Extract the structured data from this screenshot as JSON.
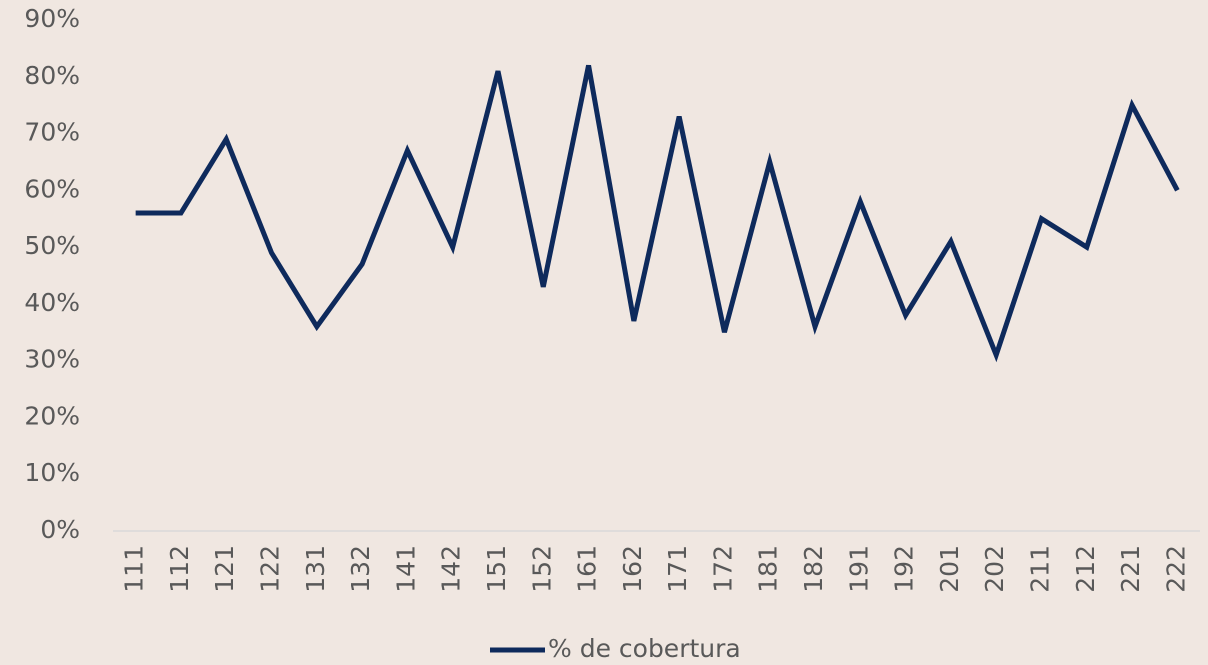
{
  "chart_data": {
    "type": "line",
    "categories": [
      "111",
      "112",
      "121",
      "122",
      "131",
      "132",
      "141",
      "142",
      "151",
      "152",
      "161",
      "162",
      "171",
      "172",
      "181",
      "182",
      "191",
      "192",
      "201",
      "202",
      "211",
      "212",
      "221",
      "222"
    ],
    "series": [
      {
        "name": "% de cobertura",
        "color": "#0e2a5c",
        "values": [
          56,
          56,
          69,
          49,
          36,
          47,
          67,
          50,
          81,
          43,
          82,
          37,
          73,
          35,
          65,
          36,
          58,
          38,
          51,
          31,
          55,
          50,
          75,
          60
        ]
      }
    ],
    "ylim": [
      0,
      90
    ],
    "yticks": [
      {
        "value": 0,
        "label": "0%"
      },
      {
        "value": 10,
        "label": "10%"
      },
      {
        "value": 20,
        "label": "20%"
      },
      {
        "value": 30,
        "label": "30%"
      },
      {
        "value": 40,
        "label": "40%"
      },
      {
        "value": 50,
        "label": "50%"
      },
      {
        "value": 60,
        "label": "60%"
      },
      {
        "value": 70,
        "label": "70%"
      },
      {
        "value": 80,
        "label": "80%"
      },
      {
        "value": 90,
        "label": "90%"
      }
    ],
    "grid": false,
    "legend": "bottom"
  }
}
